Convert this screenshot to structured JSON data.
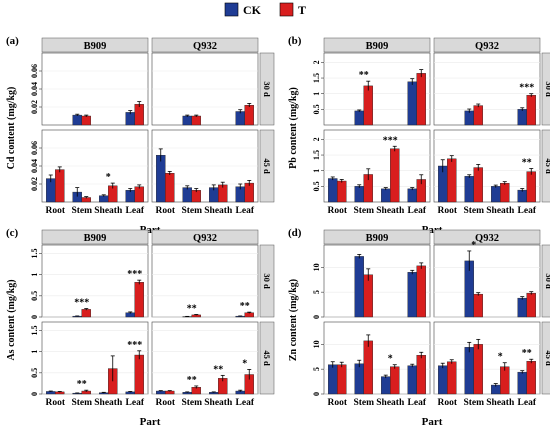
{
  "colors": {
    "ck": "#1f3c94",
    "t": "#d81e1e",
    "strip": "#d9d9d9",
    "grid": "#ebebeb",
    "err": "#000000"
  },
  "legend": [
    {
      "label": "CK",
      "color": "#1f3c94"
    },
    {
      "label": "T",
      "color": "#d81e1e"
    }
  ],
  "chart_data": [
    {
      "type": "bar",
      "panel_label": "(a)",
      "ylabel": "Cd content (mg/kg)",
      "xlabel": "Part",
      "columns": [
        "B909",
        "Q932"
      ],
      "rows": [
        "30 d",
        "45 d"
      ],
      "categories": [
        "Root",
        "Stem",
        "Sheath",
        "Leaf"
      ],
      "ylim": [
        0,
        0.08
      ],
      "yticks": [
        "0.02",
        "0.04",
        "0.06"
      ],
      "cells": [
        {
          "col": "B909",
          "row": "30 d",
          "CK": [
            0,
            0.011,
            0,
            0.014
          ],
          "T": [
            0,
            0.01,
            0,
            0.023
          ],
          "errCK": [
            0,
            0.001,
            0,
            0.002
          ],
          "errT": [
            0,
            0.001,
            0,
            0.003
          ],
          "sig": [
            "",
            "",
            "",
            ""
          ]
        },
        {
          "col": "Q932",
          "row": "30 d",
          "CK": [
            0,
            0.01,
            0,
            0.015
          ],
          "T": [
            0,
            0.01,
            0,
            0.022
          ],
          "errCK": [
            0,
            0.001,
            0,
            0.002
          ],
          "errT": [
            0,
            0.001,
            0,
            0.002
          ],
          "sig": [
            "",
            "",
            "",
            ""
          ]
        },
        {
          "col": "B909",
          "row": "45 d",
          "CK": [
            0.026,
            0.011,
            0.007,
            0.013
          ],
          "T": [
            0.036,
            0.005,
            0.018,
            0.017
          ],
          "errCK": [
            0.004,
            0.005,
            0.001,
            0.002
          ],
          "errT": [
            0.003,
            0.001,
            0.003,
            0.002
          ],
          "sig": [
            "",
            "",
            "*",
            ""
          ]
        },
        {
          "col": "Q932",
          "row": "45 d",
          "CK": [
            0.052,
            0.016,
            0.016,
            0.017
          ],
          "T": [
            0.032,
            0.013,
            0.019,
            0.021
          ],
          "errCK": [
            0.007,
            0.002,
            0.003,
            0.003
          ],
          "errT": [
            0.002,
            0.002,
            0.003,
            0.003
          ],
          "sig": [
            "",
            "",
            "",
            ""
          ]
        }
      ]
    },
    {
      "type": "bar",
      "panel_label": "(b)",
      "ylabel": "Pb content (mg/kg)",
      "xlabel": "Part",
      "columns": [
        "B909",
        "Q932"
      ],
      "rows": [
        "30 d",
        "45 d"
      ],
      "categories": [
        "Root",
        "Stem",
        "Sheath",
        "Leaf"
      ],
      "ylim": [
        0,
        2.3
      ],
      "yticks": [
        "0.5",
        "1",
        "1.5",
        "2"
      ],
      "cells": [
        {
          "col": "B909",
          "row": "30 d",
          "CK": [
            0,
            0.45,
            0,
            1.38
          ],
          "T": [
            0,
            1.25,
            0,
            1.65
          ],
          "errCK": [
            0,
            0.03,
            0,
            0.1
          ],
          "errT": [
            0,
            0.15,
            0,
            0.12
          ],
          "sig": [
            "",
            "**",
            "",
            ""
          ]
        },
        {
          "col": "Q932",
          "row": "30 d",
          "CK": [
            0,
            0.45,
            0,
            0.5
          ],
          "T": [
            0,
            0.62,
            0,
            0.95
          ],
          "errCK": [
            0,
            0.06,
            0,
            0.05
          ],
          "errT": [
            0,
            0.05,
            0,
            0.05
          ],
          "sig": [
            "",
            "",
            "",
            "***"
          ]
        },
        {
          "col": "B909",
          "row": "45 d",
          "CK": [
            0.75,
            0.5,
            0.42,
            0.42
          ],
          "T": [
            0.67,
            0.88,
            1.7,
            0.72
          ],
          "errCK": [
            0.05,
            0.05,
            0.04,
            0.04
          ],
          "errT": [
            0.05,
            0.18,
            0.08,
            0.15
          ],
          "sig": [
            "",
            "",
            "***",
            ""
          ]
        },
        {
          "col": "Q932",
          "row": "45 d",
          "CK": [
            1.15,
            0.82,
            0.5,
            0.38
          ],
          "T": [
            1.38,
            1.1,
            0.6,
            0.97
          ],
          "errCK": [
            0.2,
            0.05,
            0.04,
            0.05
          ],
          "errT": [
            0.1,
            0.1,
            0.05,
            0.1
          ],
          "sig": [
            "",
            "",
            "",
            "**"
          ]
        }
      ]
    },
    {
      "type": "bar",
      "panel_label": "(c)",
      "ylabel": "As content (mg/kg)",
      "xlabel": "Part",
      "columns": [
        "B909",
        "Q932"
      ],
      "rows": [
        "30 d",
        "45 d"
      ],
      "categories": [
        "Root",
        "Stem",
        "Sheath",
        "Leaf"
      ],
      "ylim": [
        0,
        1.7
      ],
      "yticks": [
        "0",
        "0.5",
        "1",
        "1.5"
      ],
      "cells": [
        {
          "col": "B909",
          "row": "30 d",
          "CK": [
            0,
            0.02,
            0,
            0.1
          ],
          "T": [
            0,
            0.18,
            0,
            0.82
          ],
          "errCK": [
            0,
            0.005,
            0,
            0.02
          ],
          "errT": [
            0,
            0.02,
            0,
            0.05
          ],
          "sig": [
            "",
            "***",
            "",
            "***"
          ]
        },
        {
          "col": "Q932",
          "row": "30 d",
          "CK": [
            0,
            0.01,
            0,
            0.02
          ],
          "T": [
            0,
            0.05,
            0,
            0.1
          ],
          "errCK": [
            0,
            0.005,
            0,
            0.005
          ],
          "errT": [
            0,
            0.01,
            0,
            0.015
          ],
          "sig": [
            "",
            "**",
            "",
            "**"
          ]
        },
        {
          "col": "B909",
          "row": "45 d",
          "CK": [
            0.06,
            0.02,
            0.03,
            0.05
          ],
          "T": [
            0.05,
            0.07,
            0.6,
            0.92
          ],
          "errCK": [
            0.01,
            0.005,
            0.01,
            0.01
          ],
          "errT": [
            0.01,
            0.02,
            0.3,
            0.1
          ],
          "sig": [
            "",
            "**",
            "",
            "***"
          ]
        },
        {
          "col": "Q932",
          "row": "45 d",
          "CK": [
            0.07,
            0.04,
            0.04,
            0.07
          ],
          "T": [
            0.07,
            0.16,
            0.37,
            0.46
          ],
          "errCK": [
            0.01,
            0.01,
            0.01,
            0.02
          ],
          "errT": [
            0.01,
            0.03,
            0.07,
            0.12
          ],
          "sig": [
            "",
            "**",
            "**",
            "*"
          ]
        }
      ]
    },
    {
      "type": "bar",
      "panel_label": "(d)",
      "ylabel": "Zn content (mg/kg)",
      "xlabel": "Part",
      "columns": [
        "B909",
        "Q932"
      ],
      "rows": [
        "30 d",
        "45 d"
      ],
      "categories": [
        "Root",
        "Stem",
        "Sheath",
        "Leaf"
      ],
      "ylim": [
        0,
        14.5
      ],
      "yticks": [
        "0",
        "5",
        "10"
      ],
      "cells": [
        {
          "col": "B909",
          "row": "30 d",
          "CK": [
            0,
            12.2,
            0,
            9.0
          ],
          "T": [
            0,
            8.5,
            0,
            10.3
          ],
          "errCK": [
            0,
            0.4,
            0,
            0.4
          ],
          "errT": [
            0,
            1.2,
            0,
            0.6
          ],
          "sig": [
            "",
            "",
            "",
            ""
          ]
        },
        {
          "col": "Q932",
          "row": "30 d",
          "CK": [
            0,
            11.3,
            0,
            3.8
          ],
          "T": [
            0,
            4.6,
            0,
            4.8
          ],
          "errCK": [
            0,
            2.0,
            0,
            0.3
          ],
          "errT": [
            0,
            0.3,
            0,
            0.3
          ],
          "sig": [
            "",
            "*",
            "",
            ""
          ]
        },
        {
          "col": "B909",
          "row": "45 d",
          "CK": [
            5.9,
            6.1,
            3.5,
            5.7
          ],
          "T": [
            5.9,
            10.7,
            5.5,
            7.8
          ],
          "errCK": [
            0.6,
            0.7,
            0.3,
            0.3
          ],
          "errT": [
            0.5,
            1.2,
            0.4,
            0.6
          ],
          "sig": [
            "",
            "",
            "*",
            ""
          ]
        },
        {
          "col": "Q932",
          "row": "45 d",
          "CK": [
            5.7,
            9.4,
            1.8,
            4.4
          ],
          "T": [
            6.5,
            10.0,
            5.5,
            6.6
          ],
          "errCK": [
            0.5,
            1.0,
            0.3,
            0.3
          ],
          "errT": [
            0.4,
            1.0,
            0.8,
            0.4
          ],
          "sig": [
            "",
            "",
            "*",
            "**"
          ]
        }
      ]
    }
  ]
}
